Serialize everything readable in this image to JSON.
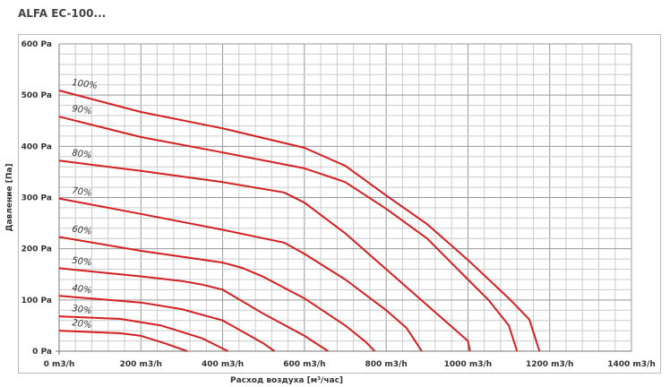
{
  "title": "ALFA EC-100...",
  "chart_data": {
    "type": "line",
    "xlabel": "Расход воздуха [м³/час]",
    "ylabel": "Давление [Па]",
    "xlim": [
      0,
      1400
    ],
    "ylim": [
      0,
      600
    ],
    "x_ticks": [
      "0 m3/h",
      "200 m3/h",
      "400 m3/h",
      "600 m3/h",
      "800 m3/h",
      "1000 m3/h",
      "1200 m3/h",
      "1400 m3/h"
    ],
    "y_ticks": [
      "0 Pa",
      "100 Pa",
      "200 Pa",
      "300 Pa",
      "400 Pa",
      "500 Pa",
      "600 Pa"
    ],
    "grid": true,
    "line_color": "#d42020",
    "series": [
      {
        "name": "100%",
        "points": [
          [
            0,
            509
          ],
          [
            200,
            467
          ],
          [
            400,
            435
          ],
          [
            600,
            397
          ],
          [
            700,
            362
          ],
          [
            800,
            304
          ],
          [
            900,
            248
          ],
          [
            1000,
            178
          ],
          [
            1100,
            103
          ],
          [
            1150,
            62
          ],
          [
            1175,
            0
          ]
        ]
      },
      {
        "name": "90%",
        "points": [
          [
            0,
            458
          ],
          [
            200,
            418
          ],
          [
            400,
            388
          ],
          [
            600,
            357
          ],
          [
            700,
            330
          ],
          [
            800,
            278
          ],
          [
            900,
            220
          ],
          [
            1000,
            140
          ],
          [
            1050,
            100
          ],
          [
            1100,
            50
          ],
          [
            1120,
            0
          ]
        ]
      },
      {
        "name": "80%",
        "points": [
          [
            0,
            372
          ],
          [
            200,
            352
          ],
          [
            400,
            330
          ],
          [
            550,
            310
          ],
          [
            600,
            290
          ],
          [
            700,
            230
          ],
          [
            800,
            160
          ],
          [
            900,
            90
          ],
          [
            1000,
            20
          ],
          [
            1005,
            0
          ]
        ]
      },
      {
        "name": "70%",
        "points": [
          [
            0,
            298
          ],
          [
            200,
            268
          ],
          [
            400,
            237
          ],
          [
            550,
            212
          ],
          [
            600,
            190
          ],
          [
            700,
            140
          ],
          [
            800,
            80
          ],
          [
            850,
            45
          ],
          [
            887,
            0
          ]
        ]
      },
      {
        "name": "60%",
        "points": [
          [
            0,
            223
          ],
          [
            200,
            196
          ],
          [
            400,
            173
          ],
          [
            450,
            162
          ],
          [
            500,
            145
          ],
          [
            600,
            103
          ],
          [
            700,
            50
          ],
          [
            750,
            18
          ],
          [
            772,
            0
          ]
        ]
      },
      {
        "name": "50%",
        "points": [
          [
            0,
            162
          ],
          [
            200,
            146
          ],
          [
            300,
            137
          ],
          [
            350,
            130
          ],
          [
            400,
            120
          ],
          [
            500,
            73
          ],
          [
            600,
            30
          ],
          [
            658,
            0
          ]
        ]
      },
      {
        "name": "40%",
        "points": [
          [
            0,
            108
          ],
          [
            200,
            95
          ],
          [
            300,
            82
          ],
          [
            400,
            60
          ],
          [
            500,
            15
          ],
          [
            527,
            0
          ]
        ]
      },
      {
        "name": "30%",
        "points": [
          [
            0,
            68
          ],
          [
            150,
            63
          ],
          [
            250,
            50
          ],
          [
            350,
            25
          ],
          [
            413,
            0
          ]
        ]
      },
      {
        "name": "20%",
        "points": [
          [
            0,
            40
          ],
          [
            150,
            35
          ],
          [
            200,
            30
          ],
          [
            260,
            15
          ],
          [
            313,
            0
          ]
        ]
      }
    ]
  }
}
